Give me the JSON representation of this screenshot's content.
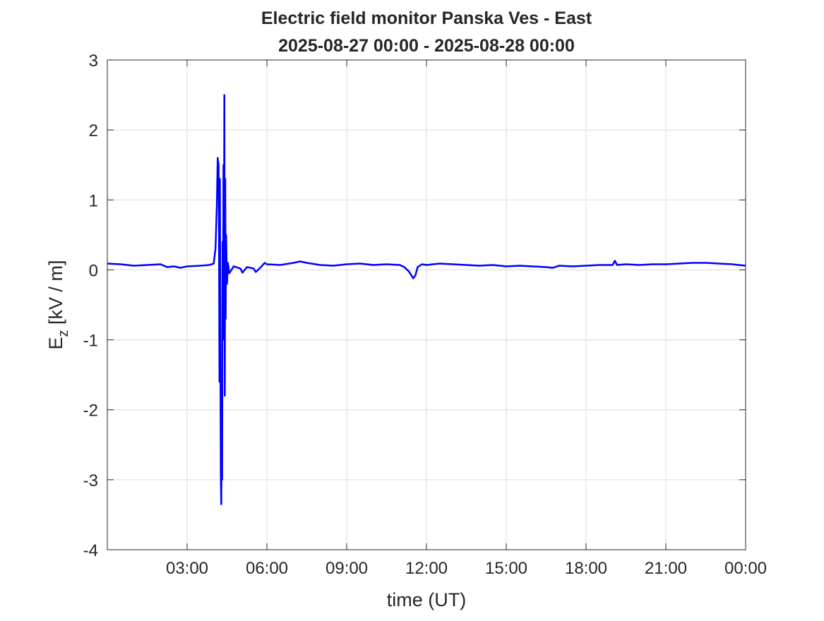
{
  "chart_data": {
    "type": "line",
    "title": "Electric field monitor Panska Ves - East",
    "subtitle": "2025-08-27 00:00 - 2025-08-28 00:00",
    "xlabel": "time (UT)",
    "ylabel_main": "E",
    "ylabel_sub": "z",
    "ylabel_unit": " [kV / m]",
    "xlim": [
      "00:00",
      "24:00"
    ],
    "ylim": [
      -4,
      3
    ],
    "grid": true,
    "line_color": "#0000ff",
    "x_ticks": [
      {
        "h": 3,
        "label": "03:00"
      },
      {
        "h": 6,
        "label": "06:00"
      },
      {
        "h": 9,
        "label": "09:00"
      },
      {
        "h": 12,
        "label": "12:00"
      },
      {
        "h": 15,
        "label": "15:00"
      },
      {
        "h": 18,
        "label": "18:00"
      },
      {
        "h": 21,
        "label": "21:00"
      },
      {
        "h": 24,
        "label": "00:00"
      }
    ],
    "y_ticks": [
      {
        "v": 3,
        "label": "3"
      },
      {
        "v": 2,
        "label": "2"
      },
      {
        "v": 1,
        "label": "1"
      },
      {
        "v": 0,
        "label": "0"
      },
      {
        "v": -1,
        "label": "-1"
      },
      {
        "v": -2,
        "label": "-2"
      },
      {
        "v": -3,
        "label": "-3"
      },
      {
        "v": -4,
        "label": "-4"
      }
    ],
    "series": [
      {
        "points": [
          [
            "00:00",
            0.09
          ],
          [
            "00:30",
            0.08
          ],
          [
            "01:00",
            0.06
          ],
          [
            "01:30",
            0.07
          ],
          [
            "02:00",
            0.08
          ],
          [
            "02:15",
            0.04
          ],
          [
            "02:30",
            0.05
          ],
          [
            "02:45",
            0.03
          ],
          [
            "03:00",
            0.05
          ],
          [
            "03:30",
            0.06
          ],
          [
            "03:50",
            0.07
          ],
          [
            "04:00",
            0.09
          ],
          [
            "04:04",
            0.3
          ],
          [
            "04:07",
            0.9
          ],
          [
            "04:09",
            1.6
          ],
          [
            "04:11",
            1.5
          ],
          [
            "04:12",
            0.5
          ],
          [
            "04:13",
            -1.6
          ],
          [
            "04:14",
            1.3
          ],
          [
            "04:15",
            -0.9
          ],
          [
            "04:16",
            -2.9
          ],
          [
            "04:17",
            -3.35
          ],
          [
            "04:18",
            -2.4
          ],
          [
            "04:19",
            -3.0
          ],
          [
            "04:20",
            0.4
          ],
          [
            "04:21",
            -1.0
          ],
          [
            "04:22",
            1.5
          ],
          [
            "04:23",
            -0.5
          ],
          [
            "04:24",
            2.5
          ],
          [
            "04:25",
            -1.8
          ],
          [
            "04:26",
            1.3
          ],
          [
            "04:27",
            -0.7
          ],
          [
            "04:28",
            0.5
          ],
          [
            "04:30",
            -0.2
          ],
          [
            "04:32",
            0.1
          ],
          [
            "04:35",
            -0.05
          ],
          [
            "04:45",
            0.05
          ],
          [
            "05:00",
            0.02
          ],
          [
            "05:05",
            -0.04
          ],
          [
            "05:15",
            0.04
          ],
          [
            "05:30",
            0.02
          ],
          [
            "05:35",
            -0.03
          ],
          [
            "05:45",
            0.03
          ],
          [
            "05:55",
            0.1
          ],
          [
            "06:00",
            0.08
          ],
          [
            "06:30",
            0.07
          ],
          [
            "07:00",
            0.1
          ],
          [
            "07:15",
            0.12
          ],
          [
            "07:30",
            0.1
          ],
          [
            "08:00",
            0.07
          ],
          [
            "08:30",
            0.06
          ],
          [
            "09:00",
            0.08
          ],
          [
            "09:30",
            0.09
          ],
          [
            "10:00",
            0.07
          ],
          [
            "10:30",
            0.08
          ],
          [
            "11:00",
            0.07
          ],
          [
            "11:10",
            0.04
          ],
          [
            "11:20",
            -0.02
          ],
          [
            "11:30",
            -0.12
          ],
          [
            "11:35",
            -0.08
          ],
          [
            "11:40",
            0.04
          ],
          [
            "11:50",
            0.08
          ],
          [
            "12:00",
            0.07
          ],
          [
            "12:30",
            0.09
          ],
          [
            "13:00",
            0.08
          ],
          [
            "13:30",
            0.07
          ],
          [
            "14:00",
            0.06
          ],
          [
            "14:30",
            0.07
          ],
          [
            "15:00",
            0.05
          ],
          [
            "15:30",
            0.06
          ],
          [
            "16:00",
            0.05
          ],
          [
            "16:30",
            0.04
          ],
          [
            "16:45",
            0.03
          ],
          [
            "17:00",
            0.06
          ],
          [
            "17:30",
            0.05
          ],
          [
            "18:00",
            0.06
          ],
          [
            "18:30",
            0.07
          ],
          [
            "19:00",
            0.07
          ],
          [
            "19:05",
            0.13
          ],
          [
            "19:10",
            0.07
          ],
          [
            "19:30",
            0.08
          ],
          [
            "20:00",
            0.07
          ],
          [
            "20:30",
            0.08
          ],
          [
            "21:00",
            0.08
          ],
          [
            "21:30",
            0.09
          ],
          [
            "22:00",
            0.1
          ],
          [
            "22:30",
            0.1
          ],
          [
            "23:00",
            0.09
          ],
          [
            "23:30",
            0.08
          ],
          [
            "24:00",
            0.06
          ]
        ]
      }
    ]
  }
}
